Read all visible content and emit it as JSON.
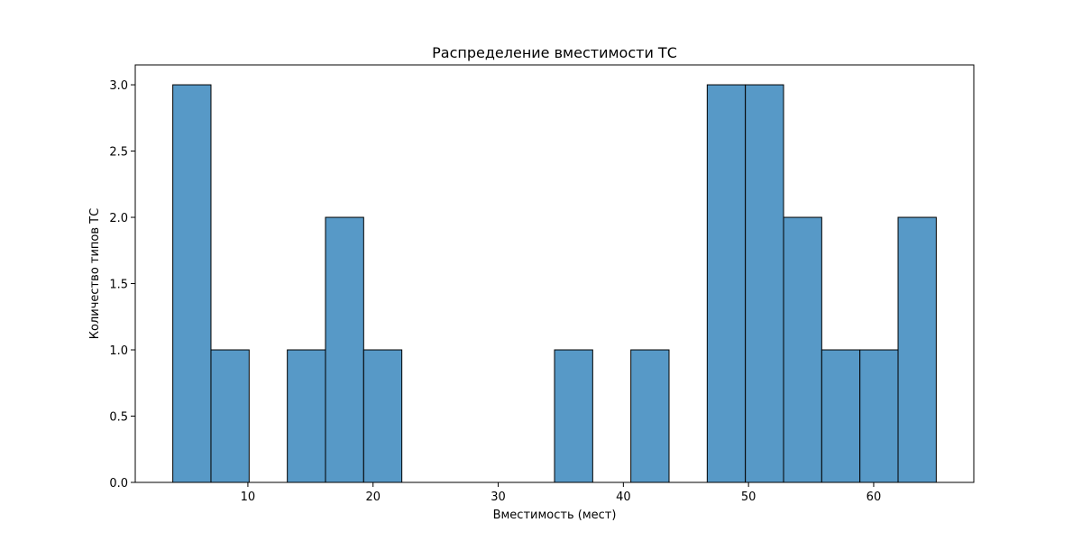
{
  "chart_data": {
    "type": "bar",
    "title": "Распределение вместимости ТС",
    "xlabel": "Вместимость (мест)",
    "ylabel": "Количество типов ТС",
    "bin_edges": [
      4,
      7.05,
      10.1,
      13.15,
      16.2,
      19.25,
      22.3,
      25.35,
      28.4,
      31.45,
      34.5,
      37.55,
      40.6,
      43.65,
      46.7,
      49.75,
      52.8,
      55.85,
      58.9,
      61.95,
      65
    ],
    "values": [
      3,
      1,
      0,
      1,
      2,
      1,
      0,
      0,
      0,
      0,
      1,
      0,
      1,
      0,
      3,
      3,
      2,
      1,
      1,
      2
    ],
    "xlim": [
      1,
      68
    ],
    "ylim": [
      0,
      3.15
    ],
    "xticks": [
      10,
      20,
      30,
      40,
      50,
      60
    ],
    "xtick_labels": [
      "10",
      "20",
      "30",
      "40",
      "50",
      "60"
    ],
    "yticks": [
      0,
      0.5,
      1,
      1.5,
      2,
      2.5,
      3
    ],
    "ytick_labels": [
      "0.0",
      "0.5",
      "1.0",
      "1.5",
      "2.0",
      "2.5",
      "3.0"
    ],
    "grid": false,
    "bar_color": "#5799c7",
    "edge_color": "#000000"
  }
}
